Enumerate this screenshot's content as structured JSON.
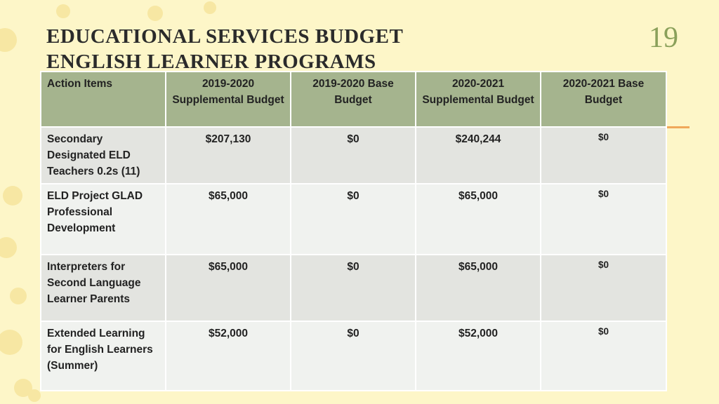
{
  "slide": {
    "title_line1": "EDUCATIONAL SERVICES BUDGET",
    "title_line2": "ENGLISH LEARNER PROGRAMS",
    "number": "19"
  },
  "table": {
    "headers": [
      "Action Items",
      "2019-2020 Supplemental Budget",
      "2019-2020 Base Budget",
      "2020-2021 Supplemental Budget",
      "2020-2021 Base Budget"
    ],
    "rows": [
      {
        "item": "Secondary Designated ELD Teachers 0.2s (11)",
        "supp_2019": "$207,130",
        "base_2019": "$0",
        "supp_2020": "$240,244",
        "base_2020": "$0"
      },
      {
        "item": "ELD Project GLAD Professional Development",
        "supp_2019": "$65,000",
        "base_2019": "$0",
        "supp_2020": "$65,000",
        "base_2020": "$0"
      },
      {
        "item": "Interpreters  for Second Language Learner Parents",
        "supp_2019": "$65,000",
        "base_2019": "$0",
        "supp_2020": "$65,000",
        "base_2020": "$0"
      },
      {
        "item": "Extended Learning for English Learners (Summer)",
        "supp_2019": "$52,000",
        "base_2019": "$0",
        "supp_2020": "$52,000",
        "base_2020": "$0"
      }
    ]
  },
  "colors": {
    "background": "#fdf6c8",
    "header_fill": "#a5b48e",
    "row_fill_odd": "#e3e4e0",
    "row_fill_even": "#f0f2ef",
    "slide_number": "#8aa05a",
    "accent": "#f0a85a"
  }
}
